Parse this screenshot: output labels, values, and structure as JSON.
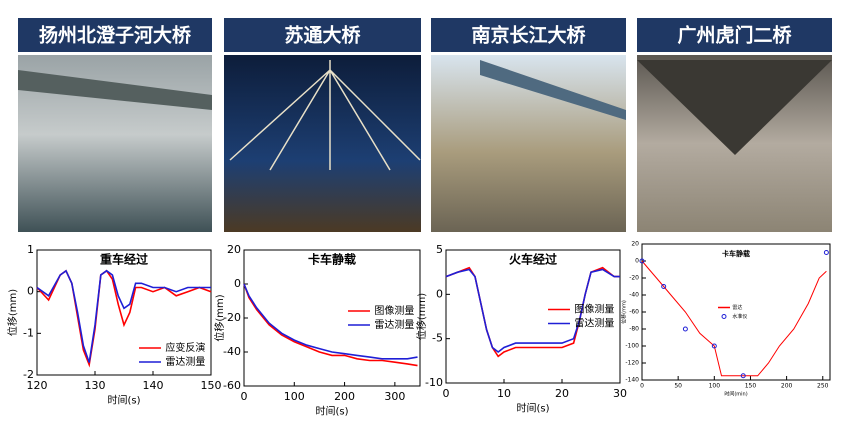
{
  "headers": [
    "扬州北澄子河大桥",
    "苏通大桥",
    "南京长江大桥",
    "广州虎门二桥"
  ],
  "chart_data": [
    {
      "type": "line",
      "title": "重车经过",
      "x_label": "时间(s)",
      "y_label": "位移(mm)",
      "x": [
        120,
        122,
        124,
        125,
        126,
        127,
        128,
        129,
        130,
        131,
        132,
        133,
        134,
        135,
        136,
        137,
        138,
        140,
        142,
        144,
        146,
        148,
        150
      ],
      "xlim": [
        120,
        150
      ],
      "xticks": [
        120,
        130,
        140,
        150
      ],
      "ylim": [
        -2,
        1
      ],
      "yticks": [
        -2,
        -1,
        0,
        1
      ],
      "legend": "lower right",
      "series": [
        {
          "name": "应变反演",
          "color": "#ff0000",
          "values": [
            0.1,
            -0.2,
            0.4,
            0.5,
            0.2,
            -0.6,
            -1.4,
            -1.75,
            -0.9,
            0.4,
            0.5,
            0.3,
            -0.3,
            -0.8,
            -0.5,
            0.1,
            0.1,
            0,
            0.1,
            -0.1,
            0,
            0.1,
            0
          ]
        },
        {
          "name": "雷达测量",
          "color": "#1f1fd6",
          "values": [
            0.1,
            -0.1,
            0.4,
            0.5,
            0.2,
            -0.5,
            -1.3,
            -1.7,
            -0.8,
            0.4,
            0.5,
            0.4,
            -0.1,
            -0.4,
            -0.3,
            0.2,
            0.2,
            0.1,
            0.1,
            0,
            0.1,
            0.1,
            0.1
          ]
        }
      ]
    },
    {
      "type": "line",
      "title": "卡车静载",
      "x_label": "时间(s)",
      "y_label": "位移(mm)",
      "x": [
        0,
        10,
        25,
        50,
        75,
        100,
        125,
        150,
        175,
        200,
        225,
        250,
        275,
        300,
        325,
        345
      ],
      "xlim": [
        0,
        350
      ],
      "xticks": [
        0,
        100,
        200,
        300
      ],
      "ylim": [
        -60,
        20
      ],
      "yticks": [
        -60,
        -40,
        -20,
        0,
        20
      ],
      "legend": "center right",
      "series": [
        {
          "name": "图像测量",
          "color": "#ff0000",
          "values": [
            0,
            -8,
            -15,
            -24,
            -30,
            -34,
            -37,
            -40,
            -42,
            -42,
            -44,
            -45,
            -45,
            -46,
            -47,
            -48
          ]
        },
        {
          "name": "雷达测量",
          "color": "#1f1fd6",
          "values": [
            0,
            -7,
            -14,
            -23,
            -29,
            -33,
            -36,
            -38,
            -40,
            -41,
            -42,
            -43,
            -44,
            -44,
            -44,
            -43
          ]
        }
      ]
    },
    {
      "type": "line",
      "title": "火车经过",
      "x_label": "时间(s)",
      "y_label": "位移(mm)",
      "x": [
        0,
        2,
        4,
        5,
        6,
        7,
        8,
        9,
        10,
        12,
        15,
        18,
        20,
        22,
        23,
        24,
        25,
        27,
        29,
        30
      ],
      "xlim": [
        0,
        30
      ],
      "xticks": [
        0,
        10,
        20,
        30
      ],
      "ylim": [
        -10,
        5
      ],
      "yticks": [
        -10,
        -5,
        0,
        5
      ],
      "legend": "center right",
      "series": [
        {
          "name": "图像测量",
          "color": "#ff0000",
          "values": [
            2,
            2.5,
            3,
            2,
            -1,
            -4,
            -6,
            -7,
            -6.5,
            -6,
            -6,
            -6,
            -6,
            -5.5,
            -3,
            0,
            2.5,
            3,
            2,
            2
          ]
        },
        {
          "name": "雷达测量",
          "color": "#1f1fd6",
          "values": [
            2,
            2.5,
            2.8,
            2,
            -1,
            -4,
            -6,
            -6.5,
            -6,
            -5.5,
            -5.5,
            -5.5,
            -5.5,
            -5,
            -3,
            0,
            2.5,
            2.8,
            2,
            2
          ]
        }
      ]
    },
    {
      "type": "line",
      "title": "卡车静载",
      "x_label": "时间(min)",
      "y_label": "位移(mm)",
      "xlim": [
        0,
        260
      ],
      "xticks": [
        0,
        50,
        100,
        150,
        200,
        250
      ],
      "ylim": [
        -140,
        20
      ],
      "yticks": [
        -140,
        -120,
        -100,
        -80,
        -60,
        -40,
        -20,
        0,
        20
      ],
      "legend": "center",
      "series": [
        {
          "name": "雷达",
          "color": "#ff0000",
          "x": [
            0,
            10,
            20,
            40,
            60,
            80,
            100,
            110,
            130,
            160,
            175,
            190,
            210,
            230,
            245,
            255
          ],
          "values": [
            0,
            -10,
            -20,
            -40,
            -60,
            -85,
            -100,
            -135,
            -135,
            -135,
            -120,
            -100,
            -80,
            -50,
            -20,
            -12
          ]
        },
        {
          "name": "水准仪",
          "color": "#1f1fd6",
          "marker": "circle",
          "x": [
            0,
            30,
            60,
            100,
            140,
            255
          ],
          "values": [
            0,
            -30,
            -80,
            -100,
            -135,
            10
          ]
        }
      ]
    }
  ]
}
